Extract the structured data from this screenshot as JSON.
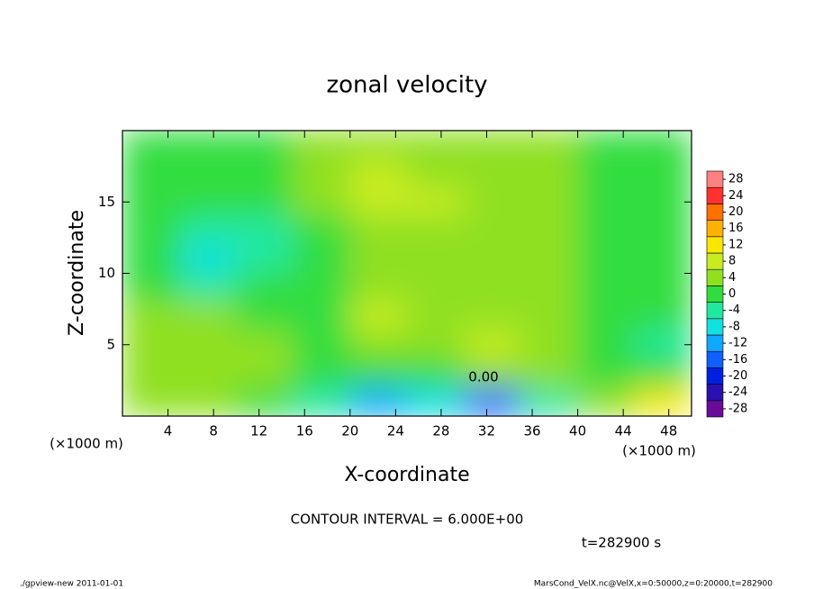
{
  "chart_data": {
    "type": "heatmap",
    "title": "zonal velocity",
    "x_label": "X-coordinate",
    "y_label": "Z-coordinate",
    "x_unit": "(×1000 m)",
    "x": [
      2.5,
      7.5,
      12.5,
      17.5,
      22.5,
      27.5,
      32.5,
      37.5,
      42.5,
      47.5
    ],
    "y": [
      19,
      17,
      15,
      13,
      11,
      9,
      7,
      5,
      3,
      1
    ],
    "values": [
      [
        0,
        0,
        -1,
        2,
        3,
        3,
        3,
        2,
        1,
        0
      ],
      [
        0,
        0,
        -1,
        2,
        6,
        5,
        3,
        2,
        1,
        0
      ],
      [
        0,
        -2,
        -1,
        2,
        6,
        6,
        4,
        2,
        0,
        0
      ],
      [
        0,
        -5,
        -3,
        1,
        3,
        5,
        5,
        3,
        0,
        0
      ],
      [
        0,
        -7,
        -5,
        1,
        3,
        5,
        5,
        3,
        1,
        0
      ],
      [
        0,
        -4,
        -2,
        1,
        3,
        4,
        4,
        3,
        1,
        0
      ],
      [
        2,
        2,
        0,
        1,
        8,
        4,
        5,
        4,
        0,
        -1
      ],
      [
        3,
        2,
        2,
        0,
        3,
        4,
        6,
        5,
        0,
        -3
      ],
      [
        2,
        5,
        2,
        0,
        1,
        0,
        2,
        2,
        0,
        -2
      ],
      [
        2,
        3,
        1,
        -3,
        -12,
        -7,
        -15,
        -4,
        4,
        10
      ]
    ],
    "xlim": [
      0,
      50
    ],
    "ylim": [
      0,
      20
    ],
    "xticks": [
      4,
      8,
      12,
      16,
      20,
      24,
      28,
      32,
      36,
      40,
      44,
      48
    ],
    "yticks": [
      5,
      10,
      15
    ],
    "colorbar": {
      "lim": [
        -30,
        30
      ],
      "bounds": [
        -30,
        -26,
        -22,
        -18,
        -14,
        -10,
        -6,
        -2,
        2,
        6,
        10,
        14,
        18,
        22,
        26,
        30
      ],
      "colors": [
        "#6a0a9a",
        "#2a10b0",
        "#0020e0",
        "#1060ff",
        "#10a8ff",
        "#10e0e0",
        "#20e8a0",
        "#30dd40",
        "#90e020",
        "#c8ec20",
        "#f8e800",
        "#ffb000",
        "#ff7000",
        "#ff3030",
        "#ff8080"
      ],
      "ticks": [
        -28,
        -24,
        -20,
        -16,
        -12,
        -8,
        -4,
        0,
        4,
        8,
        12,
        16,
        20,
        24,
        28
      ]
    },
    "annotations": [
      "0.00"
    ],
    "contour_interval": "CONTOUR INTERVAL = 6.000E+00",
    "time_label": "t=282900 s",
    "footer_left": "./gpview-new  2011-01-01",
    "footer_right": "MarsCond_VelX.nc@VelX,x=0:50000,z=0:20000,t=282900"
  }
}
